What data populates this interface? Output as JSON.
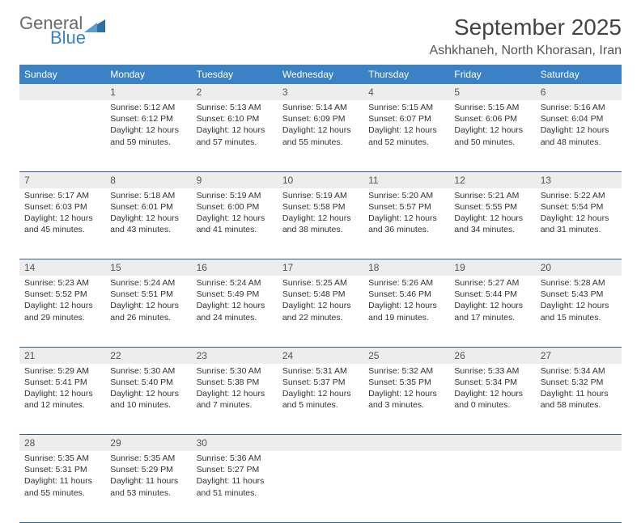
{
  "logo": {
    "text1": "General",
    "text2": "Blue",
    "triangle_color": "#2f6fa8"
  },
  "title": "September 2025",
  "location": "Ashkhaneh, North Khorasan, Iran",
  "colors": {
    "header_bg": "#3b82c4",
    "header_text": "#ffffff",
    "daynum_bg": "#ededed",
    "row_border": "#2f5f88",
    "text": "#333333"
  },
  "day_headers": [
    "Sunday",
    "Monday",
    "Tuesday",
    "Wednesday",
    "Thursday",
    "Friday",
    "Saturday"
  ],
  "weeks": [
    [
      null,
      {
        "n": "1",
        "sr": "5:12 AM",
        "ss": "6:12 PM",
        "dl": "12 hours and 59 minutes."
      },
      {
        "n": "2",
        "sr": "5:13 AM",
        "ss": "6:10 PM",
        "dl": "12 hours and 57 minutes."
      },
      {
        "n": "3",
        "sr": "5:14 AM",
        "ss": "6:09 PM",
        "dl": "12 hours and 55 minutes."
      },
      {
        "n": "4",
        "sr": "5:15 AM",
        "ss": "6:07 PM",
        "dl": "12 hours and 52 minutes."
      },
      {
        "n": "5",
        "sr": "5:15 AM",
        "ss": "6:06 PM",
        "dl": "12 hours and 50 minutes."
      },
      {
        "n": "6",
        "sr": "5:16 AM",
        "ss": "6:04 PM",
        "dl": "12 hours and 48 minutes."
      }
    ],
    [
      {
        "n": "7",
        "sr": "5:17 AM",
        "ss": "6:03 PM",
        "dl": "12 hours and 45 minutes."
      },
      {
        "n": "8",
        "sr": "5:18 AM",
        "ss": "6:01 PM",
        "dl": "12 hours and 43 minutes."
      },
      {
        "n": "9",
        "sr": "5:19 AM",
        "ss": "6:00 PM",
        "dl": "12 hours and 41 minutes."
      },
      {
        "n": "10",
        "sr": "5:19 AM",
        "ss": "5:58 PM",
        "dl": "12 hours and 38 minutes."
      },
      {
        "n": "11",
        "sr": "5:20 AM",
        "ss": "5:57 PM",
        "dl": "12 hours and 36 minutes."
      },
      {
        "n": "12",
        "sr": "5:21 AM",
        "ss": "5:55 PM",
        "dl": "12 hours and 34 minutes."
      },
      {
        "n": "13",
        "sr": "5:22 AM",
        "ss": "5:54 PM",
        "dl": "12 hours and 31 minutes."
      }
    ],
    [
      {
        "n": "14",
        "sr": "5:23 AM",
        "ss": "5:52 PM",
        "dl": "12 hours and 29 minutes."
      },
      {
        "n": "15",
        "sr": "5:24 AM",
        "ss": "5:51 PM",
        "dl": "12 hours and 26 minutes."
      },
      {
        "n": "16",
        "sr": "5:24 AM",
        "ss": "5:49 PM",
        "dl": "12 hours and 24 minutes."
      },
      {
        "n": "17",
        "sr": "5:25 AM",
        "ss": "5:48 PM",
        "dl": "12 hours and 22 minutes."
      },
      {
        "n": "18",
        "sr": "5:26 AM",
        "ss": "5:46 PM",
        "dl": "12 hours and 19 minutes."
      },
      {
        "n": "19",
        "sr": "5:27 AM",
        "ss": "5:44 PM",
        "dl": "12 hours and 17 minutes."
      },
      {
        "n": "20",
        "sr": "5:28 AM",
        "ss": "5:43 PM",
        "dl": "12 hours and 15 minutes."
      }
    ],
    [
      {
        "n": "21",
        "sr": "5:29 AM",
        "ss": "5:41 PM",
        "dl": "12 hours and 12 minutes."
      },
      {
        "n": "22",
        "sr": "5:30 AM",
        "ss": "5:40 PM",
        "dl": "12 hours and 10 minutes."
      },
      {
        "n": "23",
        "sr": "5:30 AM",
        "ss": "5:38 PM",
        "dl": "12 hours and 7 minutes."
      },
      {
        "n": "24",
        "sr": "5:31 AM",
        "ss": "5:37 PM",
        "dl": "12 hours and 5 minutes."
      },
      {
        "n": "25",
        "sr": "5:32 AM",
        "ss": "5:35 PM",
        "dl": "12 hours and 3 minutes."
      },
      {
        "n": "26",
        "sr": "5:33 AM",
        "ss": "5:34 PM",
        "dl": "12 hours and 0 minutes."
      },
      {
        "n": "27",
        "sr": "5:34 AM",
        "ss": "5:32 PM",
        "dl": "11 hours and 58 minutes."
      }
    ],
    [
      {
        "n": "28",
        "sr": "5:35 AM",
        "ss": "5:31 PM",
        "dl": "11 hours and 55 minutes."
      },
      {
        "n": "29",
        "sr": "5:35 AM",
        "ss": "5:29 PM",
        "dl": "11 hours and 53 minutes."
      },
      {
        "n": "30",
        "sr": "5:36 AM",
        "ss": "5:27 PM",
        "dl": "11 hours and 51 minutes."
      },
      null,
      null,
      null,
      null
    ]
  ],
  "labels": {
    "sunrise": "Sunrise:",
    "sunset": "Sunset:",
    "daylight": "Daylight:"
  }
}
